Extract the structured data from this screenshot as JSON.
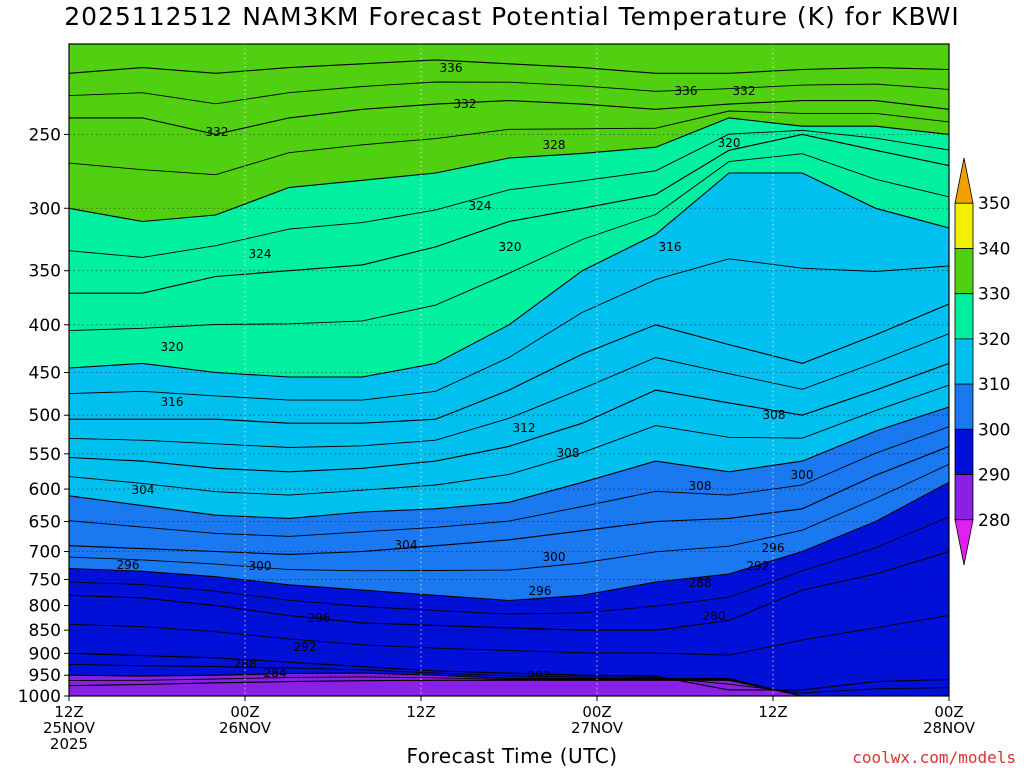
{
  "chart_data": {
    "type": "contour",
    "title": "2025112512 NAM3KM Forecast Potential Temperature (K) for KBWI",
    "xlabel": "Forecast Time (UTC)",
    "ylabel": "",
    "y_ticks": [
      250,
      300,
      350,
      400,
      450,
      500,
      550,
      600,
      650,
      700,
      750,
      800,
      850,
      900,
      950,
      1000
    ],
    "ylim": [
      1000,
      200
    ],
    "y_scale": "log",
    "x_ticks": [
      {
        "time": "12Z",
        "date": "25NOV",
        "year": "2025"
      },
      {
        "time": "00Z",
        "date": "26NOV",
        "year": ""
      },
      {
        "time": "12Z",
        "date": "",
        "year": ""
      },
      {
        "time": "00Z",
        "date": "27NOV",
        "year": ""
      },
      {
        "time": "12Z",
        "date": "",
        "year": ""
      },
      {
        "time": "00Z",
        "date": "28NOV",
        "year": ""
      }
    ],
    "xlim_hours": [
      0,
      60
    ],
    "grid": true,
    "colorbar": {
      "levels": [
        280,
        290,
        300,
        310,
        320,
        330,
        340,
        350
      ],
      "colors": [
        "#e020f0",
        "#8a20e6",
        "#0010d8",
        "#1a78f0",
        "#00c0f0",
        "#00f0a0",
        "#50d010",
        "#f0f000",
        "#f0a000"
      ]
    },
    "contour_labels": [
      "336",
      "332",
      "332",
      "336",
      "332",
      "328",
      "320",
      "324",
      "324",
      "320",
      "316",
      "320",
      "316",
      "312",
      "308",
      "308",
      "304",
      "308",
      "300",
      "304",
      "296",
      "300",
      "300",
      "296",
      "296",
      "292",
      "296",
      "292",
      "288",
      "288",
      "284",
      "280",
      "292"
    ],
    "isentropes": [
      {
        "theta": 284,
        "p": [
          975,
          972,
          968,
          965,
          963,
          962,
          962,
          962,
          962,
          962,
          1000,
          1000,
          1000
        ]
      },
      {
        "theta": 288,
        "p": [
          950,
          952,
          950,
          946,
          945,
          950,
          958,
          958,
          958,
          958,
          1000,
          1000,
          1000
        ]
      },
      {
        "theta": 292,
        "p": [
          900,
          905,
          910,
          920,
          930,
          940,
          945,
          950,
          952,
          985,
          985,
          965,
          960
        ]
      },
      {
        "theta": 296,
        "p": [
          780,
          785,
          800,
          820,
          835,
          840,
          845,
          850,
          850,
          830,
          770,
          740,
          700
        ]
      },
      {
        "theta": 300,
        "p": [
          730,
          735,
          745,
          760,
          770,
          780,
          790,
          780,
          755,
          740,
          700,
          650,
          590
        ]
      },
      {
        "theta": 304,
        "p": [
          690,
          695,
          700,
          705,
          700,
          690,
          680,
          665,
          650,
          645,
          630,
          580,
          540
        ]
      },
      {
        "theta": 308,
        "p": [
          610,
          625,
          640,
          645,
          635,
          630,
          620,
          590,
          560,
          575,
          560,
          520,
          490
        ]
      },
      {
        "theta": 312,
        "p": [
          555,
          560,
          570,
          575,
          570,
          560,
          540,
          510,
          470,
          485,
          500,
          470,
          440
        ]
      },
      {
        "theta": 316,
        "p": [
          505,
          505,
          505,
          510,
          510,
          505,
          470,
          430,
          400,
          420,
          440,
          410,
          380
        ]
      },
      {
        "theta": 320,
        "p": [
          445,
          440,
          450,
          455,
          455,
          440,
          400,
          350,
          320,
          275,
          275,
          300,
          315
        ]
      },
      {
        "theta": 324,
        "p": [
          370,
          370,
          355,
          350,
          345,
          330,
          310,
          300,
          290,
          260,
          250,
          260,
          270
        ]
      },
      {
        "theta": 328,
        "p": [
          300,
          310,
          305,
          285,
          280,
          275,
          265,
          262,
          258,
          240,
          245,
          245,
          250
        ]
      },
      {
        "theta": 332,
        "p": [
          240,
          240,
          250,
          240,
          235,
          232,
          230,
          232,
          235,
          232,
          230,
          230,
          235
        ]
      },
      {
        "theta": 336,
        "p": [
          215,
          212,
          215,
          212,
          210,
          208,
          210,
          212,
          215,
          215,
          213,
          212,
          213
        ]
      }
    ],
    "x_hours": [
      0,
      5,
      10,
      15,
      20,
      25,
      30,
      35,
      40,
      45,
      50,
      55,
      60
    ],
    "terrain_p": 1000,
    "credit": "coolwx.com/models"
  }
}
